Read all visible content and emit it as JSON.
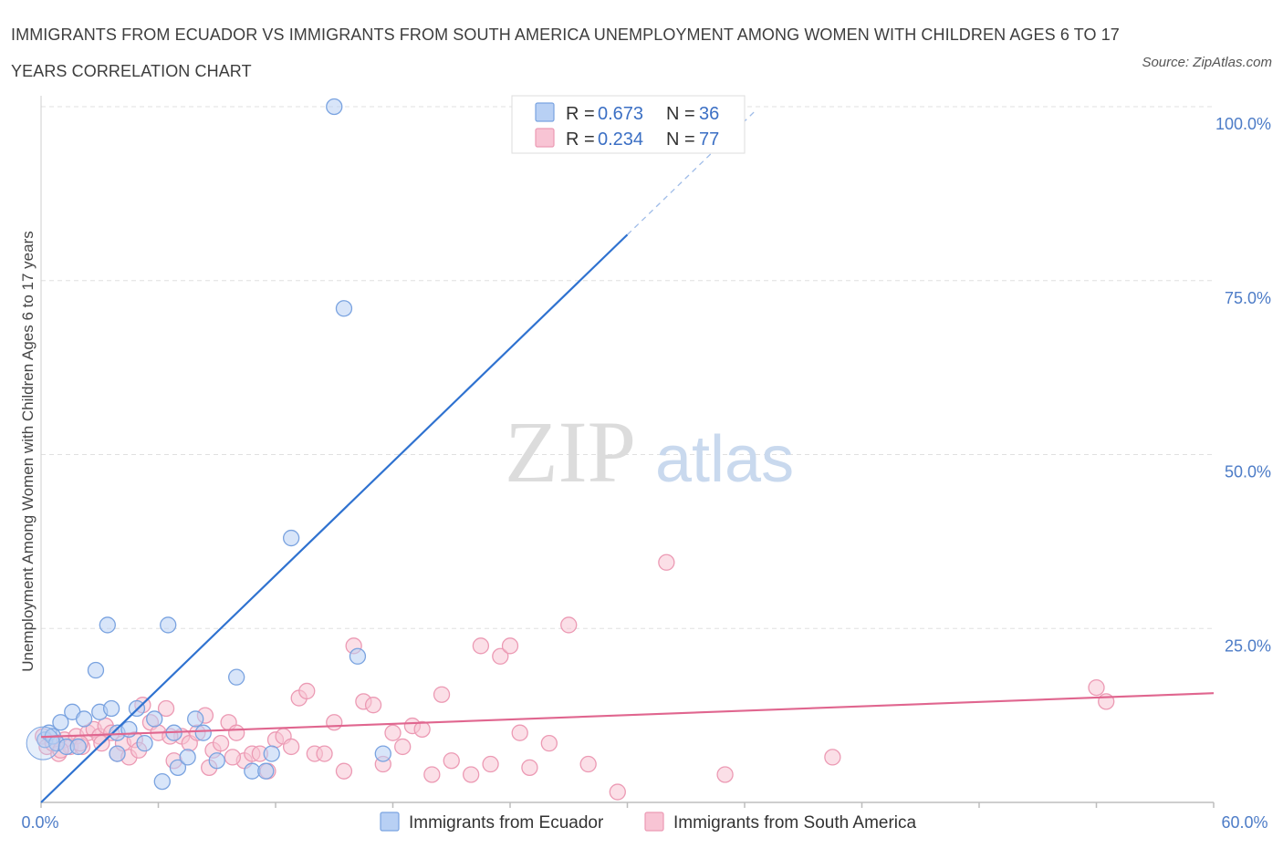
{
  "title": "IMMIGRANTS FROM ECUADOR VS IMMIGRANTS FROM SOUTH AMERICA UNEMPLOYMENT AMONG WOMEN WITH CHILDREN AGES 6 TO 17 YEARS CORRELATION CHART",
  "source": "Source: ZipAtlas.com",
  "watermark": {
    "zip": "ZIP",
    "atlas": "atlas"
  },
  "colors": {
    "ecuador_fill": "#b8d0f4",
    "ecuador_stroke": "#7aa3e0",
    "ecuador_line": "#2f72d0",
    "sa_fill": "#f8c4d4",
    "sa_stroke": "#ec9ab4",
    "sa_line": "#e0668f",
    "grid": "#e0e0e0",
    "axis_label": "#4d7cc7"
  },
  "legend": {
    "rows": [
      {
        "r_label": "R = ",
        "r_value": "0.673",
        "n_label": "N = ",
        "n_value": "36"
      },
      {
        "r_label": "R = ",
        "r_value": "0.234",
        "n_label": "N = ",
        "n_value": "77"
      }
    ]
  },
  "chart_data": {
    "type": "scatter",
    "title": "IMMIGRANTS FROM ECUADOR VS IMMIGRANTS FROM SOUTH AMERICA UNEMPLOYMENT AMONG WOMEN WITH CHILDREN AGES 6 TO 17 YEARS CORRELATION CHART",
    "xlabel": "",
    "ylabel": "Unemployment Among Women with Children Ages 6 to 17 years",
    "xlim": [
      0,
      60
    ],
    "ylim": [
      0,
      100
    ],
    "x_tick_labels": [
      "0.0%",
      "60.0%"
    ],
    "y_ticks": [
      25,
      50,
      75,
      100
    ],
    "y_tick_labels": [
      "25.0%",
      "50.0%",
      "75.0%",
      "100.0%"
    ],
    "grid": true,
    "legend_position": "top-center",
    "series": [
      {
        "name": "Immigrants from Ecuador",
        "r": 0.673,
        "n": 36,
        "trend": {
          "x0": 0,
          "y0": 0,
          "x1": 30,
          "y1": 81.6,
          "dash_to_x": 36.5
        },
        "points": [
          [
            0.2,
            9
          ],
          [
            0.4,
            10
          ],
          [
            0.6,
            9.5
          ],
          [
            0.8,
            8.5
          ],
          [
            1.0,
            11.5
          ],
          [
            1.3,
            8
          ],
          [
            1.6,
            13
          ],
          [
            1.9,
            8
          ],
          [
            2.2,
            12
          ],
          [
            2.8,
            19
          ],
          [
            3.0,
            13
          ],
          [
            3.4,
            25.5
          ],
          [
            3.6,
            13.5
          ],
          [
            3.9,
            10
          ],
          [
            4.5,
            10.5
          ],
          [
            4.9,
            13.5
          ],
          [
            5.3,
            8.5
          ],
          [
            5.8,
            12
          ],
          [
            6.5,
            25.5
          ],
          [
            6.8,
            10
          ],
          [
            7.0,
            5
          ],
          [
            7.5,
            6.5
          ],
          [
            7.9,
            12
          ],
          [
            8.3,
            10
          ],
          [
            9.0,
            6
          ],
          [
            10.0,
            18
          ],
          [
            10.8,
            4.5
          ],
          [
            11.5,
            4.5
          ],
          [
            11.8,
            7
          ],
          [
            12.8,
            38
          ],
          [
            15.0,
            100
          ],
          [
            15.5,
            71
          ],
          [
            16.2,
            21
          ],
          [
            17.5,
            7
          ],
          [
            6.2,
            3
          ],
          [
            3.9,
            7
          ]
        ]
      },
      {
        "name": "Immigrants from South America",
        "r": 0.234,
        "n": 77,
        "trend": {
          "x0": 0,
          "y0": 9.4,
          "x1": 60,
          "y1": 15.7
        },
        "points": [
          [
            0.1,
            9.5
          ],
          [
            0.3,
            8
          ],
          [
            0.6,
            8.5
          ],
          [
            0.9,
            7
          ],
          [
            1.2,
            9
          ],
          [
            1.5,
            8
          ],
          [
            1.8,
            9.5
          ],
          [
            2.1,
            8
          ],
          [
            2.4,
            10
          ],
          [
            2.7,
            10.5
          ],
          [
            3.0,
            9.5
          ],
          [
            3.3,
            11
          ],
          [
            3.6,
            10
          ],
          [
            3.9,
            7
          ],
          [
            4.2,
            8.5
          ],
          [
            4.5,
            6.5
          ],
          [
            4.8,
            9
          ],
          [
            5.2,
            14
          ],
          [
            5.6,
            11.5
          ],
          [
            6.0,
            10
          ],
          [
            6.4,
            13.5
          ],
          [
            6.8,
            6
          ],
          [
            7.2,
            9.5
          ],
          [
            7.6,
            8.5
          ],
          [
            8.0,
            10
          ],
          [
            8.4,
            12.5
          ],
          [
            8.8,
            7.5
          ],
          [
            9.2,
            8.5
          ],
          [
            9.6,
            11.5
          ],
          [
            10.0,
            10
          ],
          [
            10.4,
            6
          ],
          [
            10.8,
            7
          ],
          [
            11.2,
            7
          ],
          [
            11.6,
            4.5
          ],
          [
            12.0,
            9
          ],
          [
            12.4,
            9.5
          ],
          [
            12.8,
            8
          ],
          [
            13.2,
            15
          ],
          [
            13.6,
            16
          ],
          [
            14.0,
            7
          ],
          [
            14.5,
            7
          ],
          [
            15.0,
            11.5
          ],
          [
            15.5,
            4.5
          ],
          [
            16.0,
            22.5
          ],
          [
            16.5,
            14.5
          ],
          [
            17.0,
            14
          ],
          [
            17.5,
            5.5
          ],
          [
            18.0,
            10
          ],
          [
            18.5,
            8
          ],
          [
            19.0,
            11
          ],
          [
            19.5,
            10.5
          ],
          [
            20.0,
            4
          ],
          [
            20.5,
            15.5
          ],
          [
            21.0,
            6
          ],
          [
            22.0,
            4
          ],
          [
            22.5,
            22.5
          ],
          [
            23.0,
            5.5
          ],
          [
            23.5,
            21
          ],
          [
            24.0,
            22.5
          ],
          [
            24.5,
            10
          ],
          [
            25.0,
            5
          ],
          [
            26.0,
            8.5
          ],
          [
            27.0,
            25.5
          ],
          [
            28.0,
            5.5
          ],
          [
            29.5,
            1.5
          ],
          [
            32.0,
            34.5
          ],
          [
            35.0,
            4
          ],
          [
            40.5,
            6.5
          ],
          [
            54.0,
            16.5
          ],
          [
            54.5,
            14.5
          ],
          [
            1.0,
            7.5
          ],
          [
            2.0,
            8.5
          ],
          [
            3.1,
            8.5
          ],
          [
            5.0,
            7.5
          ],
          [
            6.6,
            9.5
          ],
          [
            8.6,
            5
          ],
          [
            9.8,
            6.5
          ]
        ]
      }
    ]
  },
  "bottom_legend": [
    {
      "label": "Immigrants from Ecuador"
    },
    {
      "label": "Immigrants from South America"
    }
  ]
}
